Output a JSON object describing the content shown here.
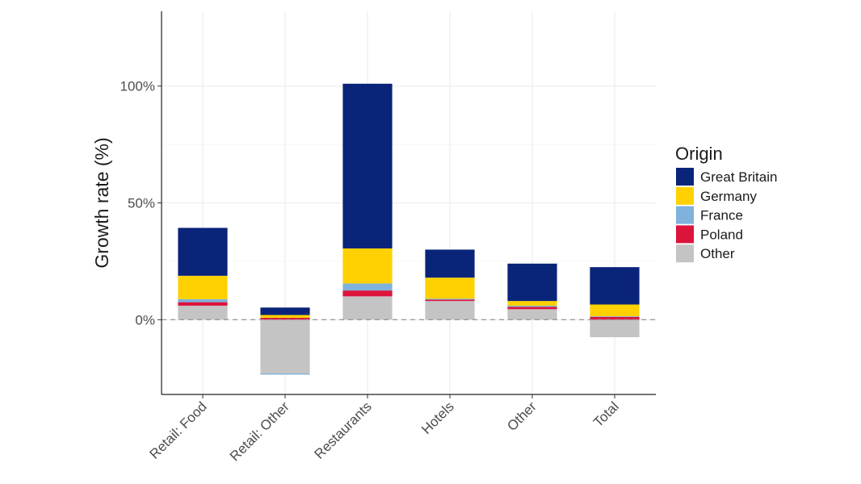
{
  "chart_data": {
    "type": "bar",
    "stacked": true,
    "title": "",
    "xlabel": "",
    "ylabel": "Growth rate (%)",
    "ylim": [
      -32,
      132
    ],
    "yticks": [
      0,
      50,
      100
    ],
    "ytick_labels": [
      "0%",
      "50%",
      "100%"
    ],
    "grid": true,
    "zero_line": "dashed",
    "categories": [
      "Retail: Food",
      "Retail: Other",
      "Restaurants",
      "Hotels",
      "Other",
      "Total"
    ],
    "legend": {
      "title": "Origin",
      "position": "right"
    },
    "series": [
      {
        "name": "Other",
        "color": "#c4c4c4",
        "values": [
          6.0,
          -23.0,
          10.0,
          8.0,
          4.5,
          -7.5
        ]
      },
      {
        "name": "Poland",
        "color": "#dc143c",
        "values": [
          1.5,
          0.8,
          2.5,
          0.6,
          1.0,
          1.2
        ]
      },
      {
        "name": "France",
        "color": "#7fb2dc",
        "values": [
          1.3,
          -0.5,
          3.0,
          0.4,
          0.5,
          0.3
        ]
      },
      {
        "name": "Germany",
        "color": "#ffd100",
        "values": [
          10.0,
          1.2,
          15.0,
          9.0,
          2.0,
          5.0
        ]
      },
      {
        "name": "Great Britain",
        "color": "#0a2479",
        "values": [
          20.5,
          3.2,
          70.5,
          12.0,
          16.0,
          16.0
        ]
      }
    ],
    "legend_order": [
      "Great Britain",
      "Germany",
      "France",
      "Poland",
      "Other"
    ]
  }
}
